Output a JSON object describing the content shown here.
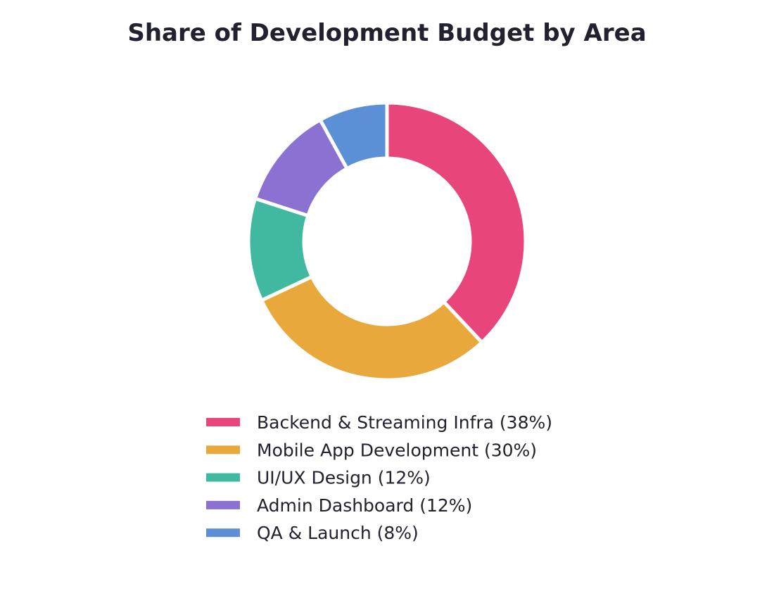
{
  "chart_data": {
    "type": "pie",
    "variant": "donut",
    "title": "Share of Development Budget by Area",
    "start_angle_deg": 90,
    "direction": "clockwise",
    "legend_position": "bottom-center",
    "slice_gap_color": "#ffffff",
    "slices": [
      {
        "label": "Backend & Streaming Infra (38%)",
        "value": 38,
        "color": "#e8457a"
      },
      {
        "label": "Mobile App Development (30%)",
        "value": 30,
        "color": "#e8a83c"
      },
      {
        "label": "UI/UX Design (12%)",
        "value": 12,
        "color": "#41b9a0"
      },
      {
        "label": "Admin Dashboard (12%)",
        "value": 12,
        "color": "#8b72d2"
      },
      {
        "label": "QA & Launch (8%)",
        "value": 8,
        "color": "#5b8fd6"
      }
    ]
  }
}
